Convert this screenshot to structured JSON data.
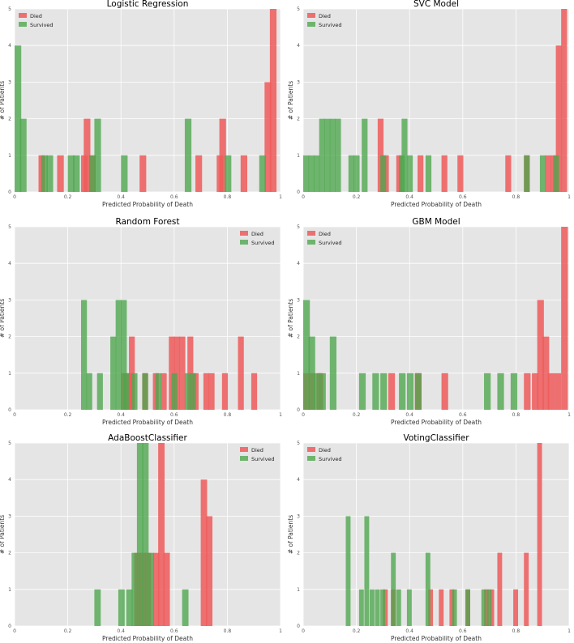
{
  "figure": {
    "xlabel": "Predicted Probability of Death",
    "ylabel": "# of Patients",
    "legend": [
      "Died",
      "Survived"
    ],
    "colors": {
      "died": "#ee5a5a",
      "survived": "#4da64d",
      "background": "#e5e5e5",
      "grid": "#ffffff"
    }
  },
  "chart_data": [
    {
      "type": "histogram",
      "title": "Logistic Regression",
      "xlim": [
        0,
        1
      ],
      "ylim": [
        0,
        5
      ],
      "xticks": [
        0.0,
        0.2,
        0.4,
        0.6,
        0.8,
        1.0
      ],
      "yticks": [
        0,
        1,
        2,
        3,
        4,
        5
      ],
      "legend_position": "top-left",
      "bin_width": 0.025,
      "died": [
        [
          0.09,
          1
        ],
        [
          0.16,
          1
        ],
        [
          0.25,
          1
        ],
        [
          0.26,
          2
        ],
        [
          0.28,
          1
        ],
        [
          0.47,
          1
        ],
        [
          0.68,
          1
        ],
        [
          0.76,
          1
        ],
        [
          0.77,
          2
        ],
        [
          0.85,
          1
        ],
        [
          0.94,
          3
        ],
        [
          0.96,
          5
        ]
      ],
      "survived": [
        [
          0.0,
          4
        ],
        [
          0.02,
          2
        ],
        [
          0.1,
          1
        ],
        [
          0.12,
          1
        ],
        [
          0.2,
          1
        ],
        [
          0.22,
          1
        ],
        [
          0.28,
          1
        ],
        [
          0.3,
          2
        ],
        [
          0.4,
          1
        ],
        [
          0.64,
          2
        ],
        [
          0.79,
          1
        ],
        [
          0.92,
          1
        ]
      ]
    },
    {
      "type": "histogram",
      "title": "SVC Model",
      "xlim": [
        0,
        1
      ],
      "ylim": [
        0,
        5
      ],
      "xticks": [
        0.0,
        0.2,
        0.4,
        0.6,
        0.8,
        1.0
      ],
      "yticks": [
        0,
        1,
        2,
        3,
        4,
        5
      ],
      "legend_position": "top-left",
      "bin_width": 0.022,
      "died": [
        [
          0.28,
          2
        ],
        [
          0.3,
          1
        ],
        [
          0.35,
          1
        ],
        [
          0.43,
          1
        ],
        [
          0.52,
          1
        ],
        [
          0.58,
          1
        ],
        [
          0.76,
          1
        ],
        [
          0.83,
          1
        ],
        [
          0.91,
          1
        ],
        [
          0.93,
          1
        ],
        [
          0.95,
          4
        ],
        [
          0.97,
          5
        ]
      ],
      "survived": [
        [
          0.0,
          1
        ],
        [
          0.02,
          1
        ],
        [
          0.04,
          1
        ],
        [
          0.06,
          2
        ],
        [
          0.08,
          2
        ],
        [
          0.1,
          2
        ],
        [
          0.12,
          2
        ],
        [
          0.17,
          1
        ],
        [
          0.19,
          1
        ],
        [
          0.22,
          2
        ],
        [
          0.29,
          1
        ],
        [
          0.36,
          1
        ],
        [
          0.37,
          2
        ],
        [
          0.39,
          1
        ],
        [
          0.46,
          1
        ],
        [
          0.83,
          1
        ],
        [
          0.89,
          1
        ],
        [
          0.94,
          1
        ]
      ]
    },
    {
      "type": "histogram",
      "title": "Random Forest",
      "xlim": [
        0,
        1
      ],
      "ylim": [
        0,
        5
      ],
      "xticks": [
        0.0,
        0.2,
        0.4,
        0.6,
        0.8,
        1.0
      ],
      "yticks": [
        0,
        1,
        2,
        3,
        4,
        5
      ],
      "legend_position": "top-right",
      "bin_width": 0.022,
      "died": [
        [
          0.4,
          1
        ],
        [
          0.42,
          1
        ],
        [
          0.43,
          2
        ],
        [
          0.48,
          1
        ],
        [
          0.52,
          1
        ],
        [
          0.55,
          1
        ],
        [
          0.58,
          2
        ],
        [
          0.6,
          2
        ],
        [
          0.62,
          2
        ],
        [
          0.65,
          2
        ],
        [
          0.67,
          1
        ],
        [
          0.71,
          1
        ],
        [
          0.73,
          1
        ],
        [
          0.78,
          1
        ],
        [
          0.84,
          2
        ],
        [
          0.89,
          1
        ]
      ],
      "survived": [
        [
          0.25,
          3
        ],
        [
          0.27,
          1
        ],
        [
          0.31,
          1
        ],
        [
          0.36,
          2
        ],
        [
          0.38,
          3
        ],
        [
          0.4,
          3
        ],
        [
          0.41,
          1
        ],
        [
          0.44,
          1
        ],
        [
          0.48,
          1
        ],
        [
          0.53,
          1
        ],
        [
          0.59,
          1
        ],
        [
          0.64,
          1
        ],
        [
          0.66,
          1
        ]
      ]
    },
    {
      "type": "histogram",
      "title": "GBM Model",
      "xlim": [
        0,
        1
      ],
      "ylim": [
        0,
        5
      ],
      "xticks": [
        0.0,
        0.2,
        0.4,
        0.6,
        0.8,
        1.0
      ],
      "yticks": [
        0,
        1,
        2,
        3,
        4,
        5
      ],
      "legend_position": "top-left",
      "bin_width": 0.025,
      "died": [
        [
          0.0,
          1
        ],
        [
          0.02,
          1
        ],
        [
          0.05,
          1
        ],
        [
          0.32,
          1
        ],
        [
          0.42,
          1
        ],
        [
          0.52,
          1
        ],
        [
          0.83,
          1
        ],
        [
          0.86,
          1
        ],
        [
          0.88,
          3
        ],
        [
          0.9,
          2
        ],
        [
          0.92,
          1
        ],
        [
          0.945,
          1
        ],
        [
          0.97,
          5
        ]
      ],
      "survived": [
        [
          0.0,
          3
        ],
        [
          0.02,
          2
        ],
        [
          0.04,
          1
        ],
        [
          0.06,
          1
        ],
        [
          0.1,
          2
        ],
        [
          0.21,
          1
        ],
        [
          0.26,
          1
        ],
        [
          0.29,
          1
        ],
        [
          0.36,
          1
        ],
        [
          0.39,
          1
        ],
        [
          0.42,
          1
        ],
        [
          0.68,
          1
        ],
        [
          0.73,
          1
        ],
        [
          0.78,
          1
        ]
      ]
    },
    {
      "type": "histogram",
      "title": "AdaBoostClassifier",
      "xlim": [
        0,
        1
      ],
      "ylim": [
        0,
        5
      ],
      "xticks": [
        0.0,
        0.2,
        0.4,
        0.6,
        0.8,
        1.0
      ],
      "yticks": [
        0,
        1,
        2,
        3,
        4,
        5
      ],
      "legend_position": "top-right",
      "bin_width": 0.024,
      "died": [
        [
          0.45,
          2
        ],
        [
          0.47,
          2
        ],
        [
          0.49,
          2
        ],
        [
          0.52,
          2
        ],
        [
          0.54,
          5
        ],
        [
          0.56,
          2
        ],
        [
          0.7,
          4
        ],
        [
          0.72,
          3
        ]
      ],
      "survived": [
        [
          0.3,
          1
        ],
        [
          0.39,
          1
        ],
        [
          0.42,
          1
        ],
        [
          0.44,
          2
        ],
        [
          0.46,
          5
        ],
        [
          0.48,
          5
        ],
        [
          0.5,
          2
        ],
        [
          0.63,
          1
        ]
      ]
    },
    {
      "type": "histogram",
      "title": "VotingClassifier",
      "xlim": [
        0,
        1
      ],
      "ylim": [
        0,
        5
      ],
      "xticks": [
        0.0,
        0.2,
        0.4,
        0.6,
        0.8,
        1.0
      ],
      "yticks": [
        0,
        1,
        2,
        3,
        4,
        5
      ],
      "legend_position": "top-left",
      "bin_width": 0.018,
      "died": [
        [
          0.3,
          1
        ],
        [
          0.33,
          1
        ],
        [
          0.47,
          1
        ],
        [
          0.51,
          1
        ],
        [
          0.55,
          1
        ],
        [
          0.61,
          1
        ],
        [
          0.68,
          1
        ],
        [
          0.7,
          1
        ],
        [
          0.73,
          2
        ],
        [
          0.79,
          1
        ],
        [
          0.83,
          2
        ],
        [
          0.88,
          5
        ]
      ],
      "survived": [
        [
          0.16,
          3
        ],
        [
          0.21,
          1
        ],
        [
          0.23,
          3
        ],
        [
          0.25,
          1
        ],
        [
          0.27,
          1
        ],
        [
          0.29,
          1
        ],
        [
          0.33,
          2
        ],
        [
          0.35,
          1
        ],
        [
          0.39,
          1
        ],
        [
          0.46,
          2
        ],
        [
          0.56,
          1
        ],
        [
          0.61,
          1
        ],
        [
          0.67,
          1
        ],
        [
          0.69,
          1
        ]
      ]
    }
  ]
}
